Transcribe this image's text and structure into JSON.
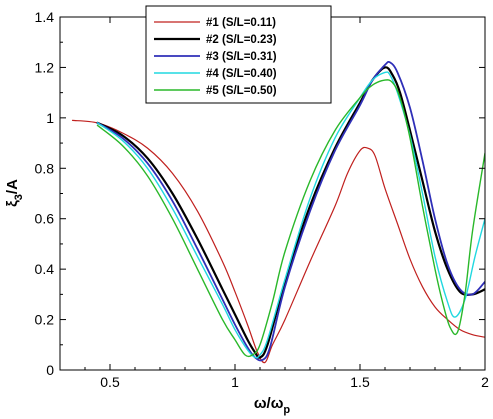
{
  "chart_data": {
    "type": "line",
    "xlabel": "ω/ω",
    "xlabel_sub": "p",
    "ylabel": "ξ",
    "ylabel_sub": "3",
    "ylabel_suffix": "/A",
    "xlim": [
      0.3,
      2.0
    ],
    "ylim": [
      0,
      1.4
    ],
    "xticks": [
      0.5,
      1,
      1.5,
      2
    ],
    "xtick_labels": [
      "0.5",
      "1",
      "1.5",
      "2"
    ],
    "yticks": [
      0,
      0.2,
      0.4,
      0.6,
      0.8,
      1.0,
      1.2,
      1.4
    ],
    "ytick_labels": [
      "0",
      "0.2",
      "0.4",
      "0.6",
      "0.8",
      "1",
      "1.2",
      "1.4"
    ],
    "grid": false,
    "legend_position": "top-center",
    "series": [
      {
        "name": "#1 (S/L=0.11)",
        "color": "#c0201e",
        "width": 1.2,
        "x": [
          0.35,
          0.45,
          0.55,
          0.65,
          0.75,
          0.85,
          0.95,
          1.0,
          1.05,
          1.09,
          1.12,
          1.15,
          1.2,
          1.3,
          1.4,
          1.45,
          1.5,
          1.53,
          1.56,
          1.6,
          1.65,
          1.7,
          1.75,
          1.8,
          1.85,
          1.9,
          1.95,
          2.0
        ],
        "y": [
          0.99,
          0.98,
          0.94,
          0.88,
          0.78,
          0.63,
          0.43,
          0.31,
          0.18,
          0.07,
          0.03,
          0.1,
          0.2,
          0.43,
          0.65,
          0.78,
          0.87,
          0.88,
          0.85,
          0.72,
          0.58,
          0.44,
          0.33,
          0.25,
          0.2,
          0.16,
          0.14,
          0.13
        ]
      },
      {
        "name": "#2 (S/L=0.23)",
        "color": "#000000",
        "width": 2.2,
        "x": [
          0.45,
          0.55,
          0.65,
          0.75,
          0.85,
          0.95,
          1.0,
          1.05,
          1.08,
          1.1,
          1.13,
          1.2,
          1.3,
          1.4,
          1.5,
          1.55,
          1.6,
          1.63,
          1.66,
          1.7,
          1.75,
          1.8,
          1.85,
          1.9,
          1.95,
          2.0
        ],
        "y": [
          0.98,
          0.93,
          0.84,
          0.7,
          0.52,
          0.32,
          0.22,
          0.12,
          0.07,
          0.05,
          0.1,
          0.35,
          0.65,
          0.88,
          1.06,
          1.15,
          1.2,
          1.17,
          1.1,
          0.95,
          0.75,
          0.55,
          0.4,
          0.31,
          0.3,
          0.32
        ]
      },
      {
        "name": "#3 (S/L=0.31)",
        "color": "#2f2fb8",
        "width": 1.8,
        "x": [
          0.45,
          0.55,
          0.65,
          0.75,
          0.85,
          0.95,
          1.0,
          1.05,
          1.08,
          1.11,
          1.14,
          1.2,
          1.3,
          1.4,
          1.5,
          1.55,
          1.6,
          1.62,
          1.65,
          1.7,
          1.75,
          1.8,
          1.85,
          1.9,
          1.95,
          2.0
        ],
        "y": [
          0.98,
          0.92,
          0.82,
          0.67,
          0.48,
          0.28,
          0.18,
          0.09,
          0.05,
          0.04,
          0.09,
          0.33,
          0.63,
          0.87,
          1.05,
          1.15,
          1.21,
          1.22,
          1.18,
          1.04,
          0.83,
          0.6,
          0.42,
          0.32,
          0.3,
          0.35
        ]
      },
      {
        "name": "#4 (S/L=0.40)",
        "color": "#20d8e0",
        "width": 1.4,
        "x": [
          0.45,
          0.55,
          0.65,
          0.75,
          0.85,
          0.95,
          1.0,
          1.05,
          1.08,
          1.1,
          1.13,
          1.2,
          1.3,
          1.4,
          1.5,
          1.55,
          1.6,
          1.62,
          1.65,
          1.7,
          1.75,
          1.8,
          1.85,
          1.88,
          1.92,
          1.96,
          2.0
        ],
        "y": [
          0.98,
          0.91,
          0.8,
          0.64,
          0.45,
          0.26,
          0.16,
          0.08,
          0.05,
          0.06,
          0.12,
          0.36,
          0.68,
          0.92,
          1.08,
          1.15,
          1.18,
          1.17,
          1.1,
          0.93,
          0.7,
          0.45,
          0.27,
          0.21,
          0.28,
          0.45,
          0.6
        ]
      },
      {
        "name": "#5 (S/L=0.50)",
        "color": "#2ab82a",
        "width": 1.4,
        "x": [
          0.45,
          0.55,
          0.65,
          0.75,
          0.85,
          0.95,
          1.0,
          1.04,
          1.07,
          1.1,
          1.15,
          1.2,
          1.3,
          1.4,
          1.5,
          1.55,
          1.6,
          1.63,
          1.66,
          1.7,
          1.75,
          1.8,
          1.83,
          1.86,
          1.89,
          1.92,
          1.95,
          2.0
        ],
        "y": [
          0.97,
          0.89,
          0.77,
          0.6,
          0.4,
          0.2,
          0.12,
          0.06,
          0.06,
          0.1,
          0.27,
          0.47,
          0.75,
          0.95,
          1.08,
          1.13,
          1.15,
          1.14,
          1.08,
          0.92,
          0.65,
          0.4,
          0.27,
          0.17,
          0.15,
          0.3,
          0.55,
          0.86
        ]
      }
    ]
  }
}
